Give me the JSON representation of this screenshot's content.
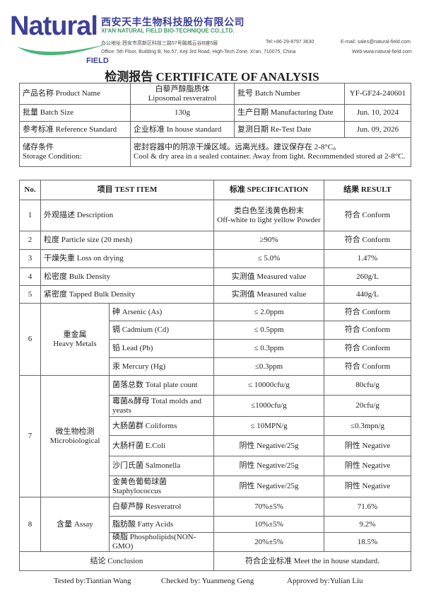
{
  "header": {
    "logo_word": "Natural",
    "logo_sub": "FIELD",
    "company_cn": "西安天丰生物科技股份有限公司",
    "company_en": "XI'AN NATURAL FIELD BIO-TECHNIQUE CO.,LTD.",
    "address_cn": "办公地址:西安市高新区科技三路57号融城云谷B座5层",
    "address_en": "Office: 5th Floor, Building B, No.57, Keji 3rd Road, High-Tech Zone, Xi'an, 710075, China",
    "tel": "Tel:+86-29-8797 3630",
    "email": "E-mail: sales@natural-field.com",
    "web": "Web:www.natural-field.com",
    "brand_color": "#3d3f99",
    "accent_color": "#3d9a67"
  },
  "title": "检测报告 CERTIFICATE OF ANALYSIS",
  "info": {
    "product_name_label": "产品名称 Product Name",
    "product_name_cn": "白藜芦醇脂质体",
    "product_name_en": "Liposomal resveratrol",
    "batch_number_label": "批号 Batch Number",
    "batch_number": "YF-GF24-240601",
    "batch_size_label": "批量 Batch Size",
    "batch_size": "130g",
    "mfg_date_label": "生产日期 Manufacturing Date",
    "mfg_date": "Jun. 10, 2024",
    "ref_std_label": "参考标准 Reference Standard",
    "ref_std": "企业标准 In house standard",
    "retest_label": "复测日期 Re-Test Date",
    "retest_date": "Jun. 09, 2026",
    "storage_label_cn": "储存条件",
    "storage_label_en": "Storage Condition:",
    "storage_cn": "密封容器中的阴凉干燥区域。远离光线。建议保存在 2-8°C。",
    "storage_en": "Cool & dry area in a sealed container.   Away from light. Recommended stored at 2-8°C."
  },
  "table": {
    "headers": [
      "No.",
      "项目 TEST ITEM",
      "标准 SPECIFICATION",
      "结果 RESULT"
    ],
    "r1": {
      "no": "1",
      "item": "外观描述 Description",
      "spec_cn": "类白色至浅黄色粉末",
      "spec_en": "Off-white to light yellow Powder",
      "result": "符合 Conform"
    },
    "r2": {
      "no": "2",
      "item": "粒度 Particle size (20 mesh)",
      "spec": "≥90%",
      "result": "符合 Conform"
    },
    "r3": {
      "no": "3",
      "item": "干燥失重 Loss on drying",
      "spec": "≤ 5.0%",
      "result": "1.47%"
    },
    "r4": {
      "no": "4",
      "item": "松密度 Bulk Density",
      "spec": "实测值 Measured value",
      "result": "260g/L"
    },
    "r5": {
      "no": "5",
      "item": "紧密度 Tapped Bulk Density",
      "spec": "实测值 Measured value",
      "result": "440g/L"
    },
    "g6": {
      "no": "6",
      "name_cn": "重金属",
      "name_en": "Heavy Metals",
      "rows": [
        {
          "item": "砷 Arsenic (As)",
          "spec": "≤ 2.0ppm",
          "result": "符合 Conform"
        },
        {
          "item": "镉 Cadmium (Cd)",
          "spec": "≤ 0.5ppm",
          "result": "符合 Conform"
        },
        {
          "item": "铅 Lead (Pb)",
          "spec": "≤ 0.3ppm",
          "result": "符合 Conform"
        },
        {
          "item": "汞 Mercury (Hg)",
          "spec": "≤0.3ppm",
          "result": "符合 Conform"
        }
      ]
    },
    "g7": {
      "no": "7",
      "name_cn": "微生物检测",
      "name_en": "Microbiological",
      "rows": [
        {
          "item": "菌落总数 Total plate count",
          "spec": "≤ 10000cfu/g",
          "result": "80cfu/g"
        },
        {
          "item": "霉菌&酵母 Total molds and yeasts",
          "spec": "≤1000cfu/g",
          "result": "20cfu/g"
        },
        {
          "item": "大肠菌群 Coliforms",
          "spec": "≤ 10MPN/g",
          "result": "≤0.3mpn/g"
        },
        {
          "item": "大肠杆菌 E.Coli",
          "spec": "阴性 Negative/25g",
          "result": "阴性 Negative"
        },
        {
          "item": "沙门氏菌 Salmonella",
          "spec": "阴性 Negative/25g",
          "result": "阴性 Negative"
        },
        {
          "item": "金黄色葡萄球菌 Staphylococcus",
          "spec": "阴性 Negative/25g",
          "result": "阴性 Negative"
        }
      ]
    },
    "g8": {
      "no": "8",
      "name": "含量 Assay",
      "rows": [
        {
          "item": "白藜芦醇 Resveratrol",
          "spec": "70%±5%",
          "result": "71.6%"
        },
        {
          "item": "脂肪酸 Fatty Acids",
          "spec": "10%±5%",
          "result": "9.2%"
        },
        {
          "item": "磷脂 Phospholipids(NON-GMO)",
          "spec": "20%±5%",
          "result": "18.5%"
        }
      ]
    },
    "conclusion_label": "结论 Conclusion",
    "conclusion": "符合企业标准 Meet the in house standard."
  },
  "footer": {
    "tested": "Tested by:Tiantian Wang",
    "checked": "Checked by: Yuanmeng Geng",
    "approved": "Approved by:Yulian Liu"
  }
}
